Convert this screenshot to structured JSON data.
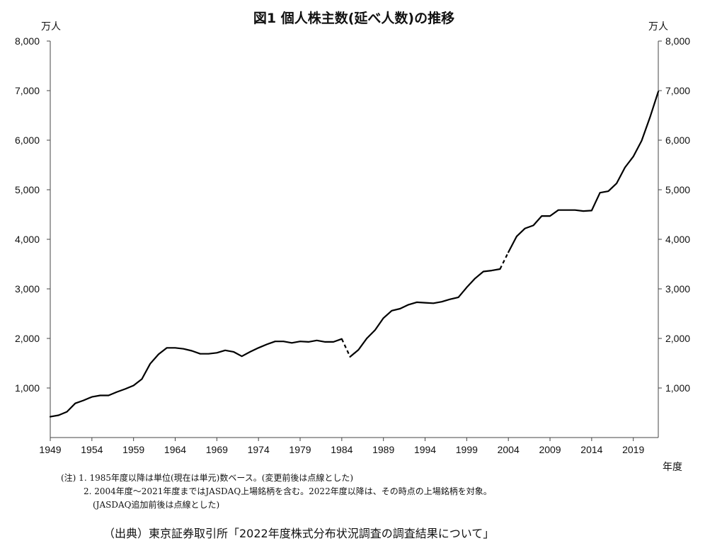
{
  "chart_data": {
    "type": "line",
    "title": "図1 個人株主数(延べ人数)の推移",
    "y_unit_left": "万人",
    "y_unit_right": "万人",
    "xlabel": "年度",
    "ylim": [
      0,
      8000
    ],
    "xlim": [
      1949,
      2022
    ],
    "y_ticks": [
      1000,
      2000,
      3000,
      4000,
      5000,
      6000,
      7000,
      8000
    ],
    "y_tick_labels": [
      "1,000",
      "2,000",
      "3,000",
      "4,000",
      "5,000",
      "6,000",
      "7,000",
      "8,000"
    ],
    "x_ticks": [
      1949,
      1954,
      1959,
      1964,
      1969,
      1974,
      1979,
      1984,
      1989,
      1994,
      1999,
      2004,
      2009,
      2014,
      2019
    ],
    "x_tick_labels": [
      "1949",
      "1954",
      "1959",
      "1964",
      "1969",
      "1974",
      "1979",
      "1984",
      "1989",
      "1994",
      "1999",
      "2004",
      "2009",
      "2014",
      "2019"
    ],
    "grid": false,
    "legend": "none",
    "series": [
      {
        "x": [
          1949,
          1950,
          1951,
          1952,
          1953,
          1954,
          1955,
          1956,
          1957,
          1958,
          1959,
          1960,
          1961,
          1962,
          1963,
          1964,
          1965,
          1966,
          1967,
          1968,
          1969,
          1970,
          1971,
          1972,
          1973,
          1974,
          1975,
          1976,
          1977,
          1978,
          1979,
          1980,
          1981,
          1982,
          1983,
          1984,
          1985,
          1986,
          1987,
          1988,
          1989,
          1990,
          1991,
          1992,
          1993,
          1994,
          1995,
          1996,
          1997,
          1998,
          1999,
          2000,
          2001,
          2002,
          2003,
          2004,
          2005,
          2006,
          2007,
          2008,
          2009,
          2010,
          2011,
          2012,
          2013,
          2014,
          2015,
          2016,
          2017,
          2018,
          2019,
          2020,
          2021,
          2022
        ],
        "y": [
          420,
          450,
          520,
          690,
          750,
          820,
          850,
          850,
          920,
          980,
          1050,
          1180,
          1490,
          1680,
          1810,
          1810,
          1790,
          1750,
          1690,
          1690,
          1710,
          1760,
          1730,
          1640,
          1730,
          1810,
          1880,
          1940,
          1940,
          1910,
          1940,
          1930,
          1960,
          1930,
          1930,
          1990,
          1630,
          1770,
          2000,
          2170,
          2410,
          2560,
          2600,
          2680,
          2730,
          2720,
          2710,
          2740,
          2790,
          2830,
          3030,
          3210,
          3350,
          3370,
          3400,
          3740,
          4060,
          4220,
          4280,
          4470,
          4470,
          4590,
          4590,
          4590,
          4570,
          4580,
          4940,
          4970,
          5130,
          5450,
          5670,
          5990,
          6460,
          6980
        ],
        "dashed_segments": [
          [
            1984,
            1985
          ],
          [
            2003,
            2004
          ]
        ]
      }
    ]
  },
  "notes": {
    "line1": "(注) 1. 1985年度以降は単位(現在は単元)数ベース。(変更前後は点線とした)",
    "line2": "2. 2004年度〜2021年度まではJASDAQ上場銘柄を含む。2022年度以降は、その時点の上場銘柄を対象。",
    "line3": "(JASDAQ追加前後は点線とした)"
  },
  "source": "（出典）東京証券取引所「2022年度株式分布状況調査の調査結果について」"
}
